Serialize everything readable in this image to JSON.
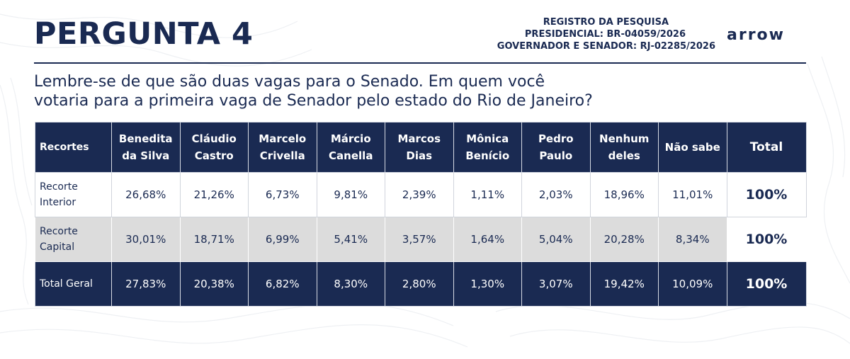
{
  "header": {
    "title": "PERGUNTA 4",
    "registro": {
      "line1": "REGISTRO DA PESQUISA",
      "line2": "PRESIDENCIAL: BR-04059/2026",
      "line3": "GOVERNADOR E SENADOR: RJ-02285/2026"
    },
    "logo": "arrow"
  },
  "question": {
    "line1": "Lembre-se de que são duas vagas para o Senado. Em quem você",
    "line2": "votaria para a primeira vaga de Senador pelo estado do Rio de Janeiro?"
  },
  "table": {
    "headers": [
      "Recortes",
      "Benedita da Silva",
      "Cláudio Castro",
      "Marcelo Crivella",
      "Márcio Canella",
      "Marcos Dias",
      "Mônica Benício",
      "Pedro Paulo",
      "Nenhum deles",
      "Não sabe",
      "Total"
    ],
    "rows": [
      {
        "label": "Recorte Interior",
        "values": [
          "26,68%",
          "21,26%",
          "6,73%",
          "9,81%",
          "2,39%",
          "1,11%",
          "2,03%",
          "18,96%",
          "11,01%"
        ],
        "total": "100%"
      },
      {
        "label": "Recorte Capital",
        "values": [
          "30,01%",
          "18,71%",
          "6,99%",
          "5,41%",
          "3,57%",
          "1,64%",
          "5,04%",
          "20,28%",
          "8,34%"
        ],
        "total": "100%"
      },
      {
        "label": "Total Geral",
        "values": [
          "27,83%",
          "20,38%",
          "6,82%",
          "8,30%",
          "2,80%",
          "1,30%",
          "3,07%",
          "19,42%",
          "10,09%"
        ],
        "total": "100%"
      }
    ]
  },
  "colors": {
    "navy": "#1a2a52",
    "row_gray": "#dcdcdc",
    "background": "#ffffff"
  }
}
